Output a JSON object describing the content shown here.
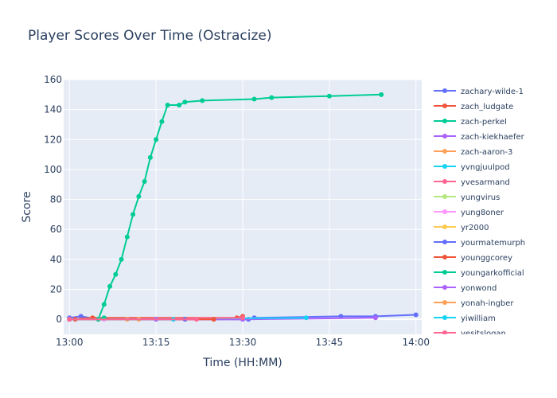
{
  "chart_data": {
    "type": "line",
    "title": "Player Scores Over Time (Ostracize)",
    "xlabel": "Time (HH:MM)",
    "ylabel": "Score",
    "x_ticks": [
      "13:00",
      "13:15",
      "13:30",
      "13:45",
      "14:00"
    ],
    "y_ticks": [
      0,
      20,
      40,
      60,
      80,
      100,
      120,
      140,
      160
    ],
    "xlim": [
      "12:59",
      "14:01"
    ],
    "ylim": [
      -10,
      160
    ],
    "grid": true,
    "legend_position": "right",
    "colors": {
      "plot_bg": "#E5ECF6",
      "grid": "#ffffff",
      "text": "#2a3f5f"
    },
    "series": [
      {
        "name": "zachary-wilde-1",
        "color": "#636EFA",
        "points": [
          [
            "13:00",
            1
          ],
          [
            "13:02",
            2
          ],
          [
            "13:05",
            0
          ],
          [
            "13:31",
            0
          ],
          [
            "13:32",
            1
          ],
          [
            "13:47",
            2
          ],
          [
            "13:53",
            2
          ],
          [
            "14:00",
            3
          ]
        ]
      },
      {
        "name": "zach_ludgate",
        "color": "#EF553B",
        "points": [
          [
            "13:00",
            0
          ],
          [
            "13:04",
            1
          ],
          [
            "13:29",
            1
          ],
          [
            "13:30",
            2
          ]
        ]
      },
      {
        "name": "zach-perkel",
        "color": "#00CC96",
        "points": [
          [
            "13:05",
            0
          ],
          [
            "13:06",
            10
          ],
          [
            "13:07",
            22
          ],
          [
            "13:08",
            30
          ],
          [
            "13:09",
            40
          ],
          [
            "13:10",
            55
          ],
          [
            "13:11",
            70
          ],
          [
            "13:12",
            82
          ],
          [
            "13:13",
            92
          ],
          [
            "13:14",
            108
          ],
          [
            "13:15",
            120
          ],
          [
            "13:16",
            132
          ],
          [
            "13:17",
            143
          ],
          [
            "13:19",
            143
          ],
          [
            "13:20",
            145
          ],
          [
            "13:23",
            146
          ],
          [
            "13:32",
            147
          ],
          [
            "13:35",
            148
          ],
          [
            "13:45",
            149
          ],
          [
            "13:54",
            150
          ]
        ]
      },
      {
        "name": "zach-kiekhaefer",
        "color": "#AB63FA",
        "points": [
          [
            "13:00",
            0
          ],
          [
            "13:30",
            0
          ],
          [
            "13:53",
            1
          ]
        ]
      },
      {
        "name": "zach-aaron-3",
        "color": "#FFA15A",
        "points": [
          [
            "13:00",
            0
          ],
          [
            "13:10",
            0
          ]
        ]
      },
      {
        "name": "yvngjuulpod",
        "color": "#19D3F3",
        "points": [
          [
            "13:00",
            0
          ],
          [
            "13:41",
            1
          ]
        ]
      },
      {
        "name": "yvesarmand",
        "color": "#FF6692",
        "points": [
          [
            "13:00",
            0
          ],
          [
            "13:30",
            1
          ]
        ]
      },
      {
        "name": "yungvirus",
        "color": "#B6E880",
        "points": [
          [
            "13:00",
            0
          ],
          [
            "13:05",
            0
          ]
        ]
      },
      {
        "name": "yung8oner",
        "color": "#FF97FF",
        "points": [
          [
            "13:00",
            0
          ],
          [
            "13:06",
            0
          ]
        ]
      },
      {
        "name": "yr2000",
        "color": "#FECB52",
        "points": [
          [
            "13:00",
            0
          ]
        ]
      },
      {
        "name": "yourmatemurph",
        "color": "#636EFA",
        "points": [
          [
            "13:00",
            0
          ],
          [
            "13:20",
            0
          ]
        ]
      },
      {
        "name": "younggcorey",
        "color": "#EF553B",
        "points": [
          [
            "13:01",
            0
          ],
          [
            "13:25",
            0
          ]
        ]
      },
      {
        "name": "youngarkofficial",
        "color": "#00CC96",
        "points": [
          [
            "13:05",
            0
          ],
          [
            "13:06",
            1
          ]
        ]
      },
      {
        "name": "yonwond",
        "color": "#AB63FA",
        "points": [
          [
            "13:00",
            0
          ],
          [
            "13:15",
            0
          ]
        ]
      },
      {
        "name": "yonah-ingber",
        "color": "#FFA15A",
        "points": [
          [
            "13:00",
            0
          ],
          [
            "13:12",
            0
          ]
        ]
      },
      {
        "name": "yiwilliam",
        "color": "#19D3F3",
        "points": [
          [
            "13:00",
            0
          ],
          [
            "13:18",
            0
          ]
        ]
      },
      {
        "name": "yesitslogan",
        "color": "#FF6692",
        "points": [
          [
            "13:00",
            0
          ],
          [
            "13:22",
            0
          ]
        ]
      }
    ]
  }
}
